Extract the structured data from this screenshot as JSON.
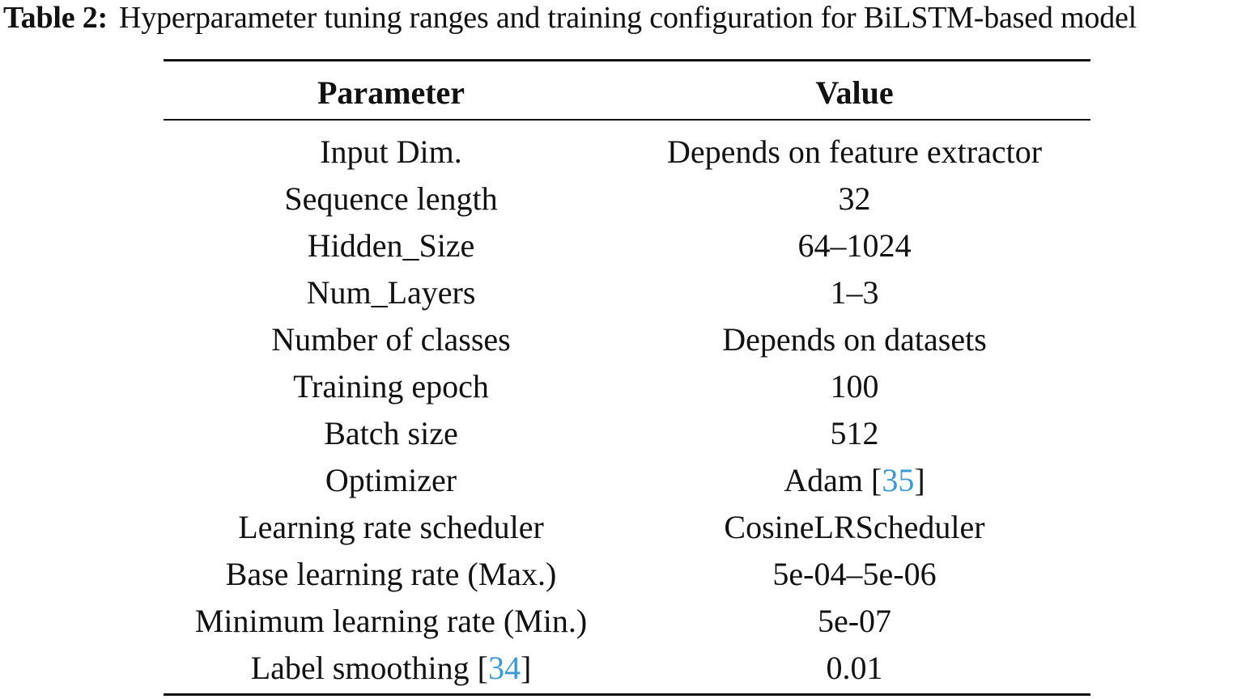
{
  "caption": {
    "label": "Table 2:",
    "text": "Hyperparameter tuning ranges and training configuration for BiLSTM-based model"
  },
  "table": {
    "headers": [
      "Parameter",
      "Value"
    ],
    "rows": [
      {
        "parameter": "Input Dim.",
        "value": "Depends on feature extractor"
      },
      {
        "parameter": "Sequence length",
        "value": "32"
      },
      {
        "parameter": "Hidden_Size",
        "value": "64–1024"
      },
      {
        "parameter": "Num_Layers",
        "value": "1–3"
      },
      {
        "parameter": "Number of classes",
        "value": "Depends on datasets"
      },
      {
        "parameter": "Training epoch",
        "value": "100"
      },
      {
        "parameter": "Batch size",
        "value": "512"
      },
      {
        "parameter": "Optimizer",
        "value": "Adam",
        "value_citation": "35"
      },
      {
        "parameter": "Learning rate scheduler",
        "value": "CosineLRScheduler"
      },
      {
        "parameter": "Base learning rate (Max.)",
        "value": "5e-04–5e-06"
      },
      {
        "parameter": "Minimum learning rate (Min.)",
        "value": "5e-07"
      },
      {
        "parameter": "Label smoothing",
        "parameter_citation": "34",
        "value": "0.01"
      }
    ]
  },
  "colors": {
    "text": "#111111",
    "citation_link": "#3a9ad6",
    "background": "#ffffff"
  }
}
